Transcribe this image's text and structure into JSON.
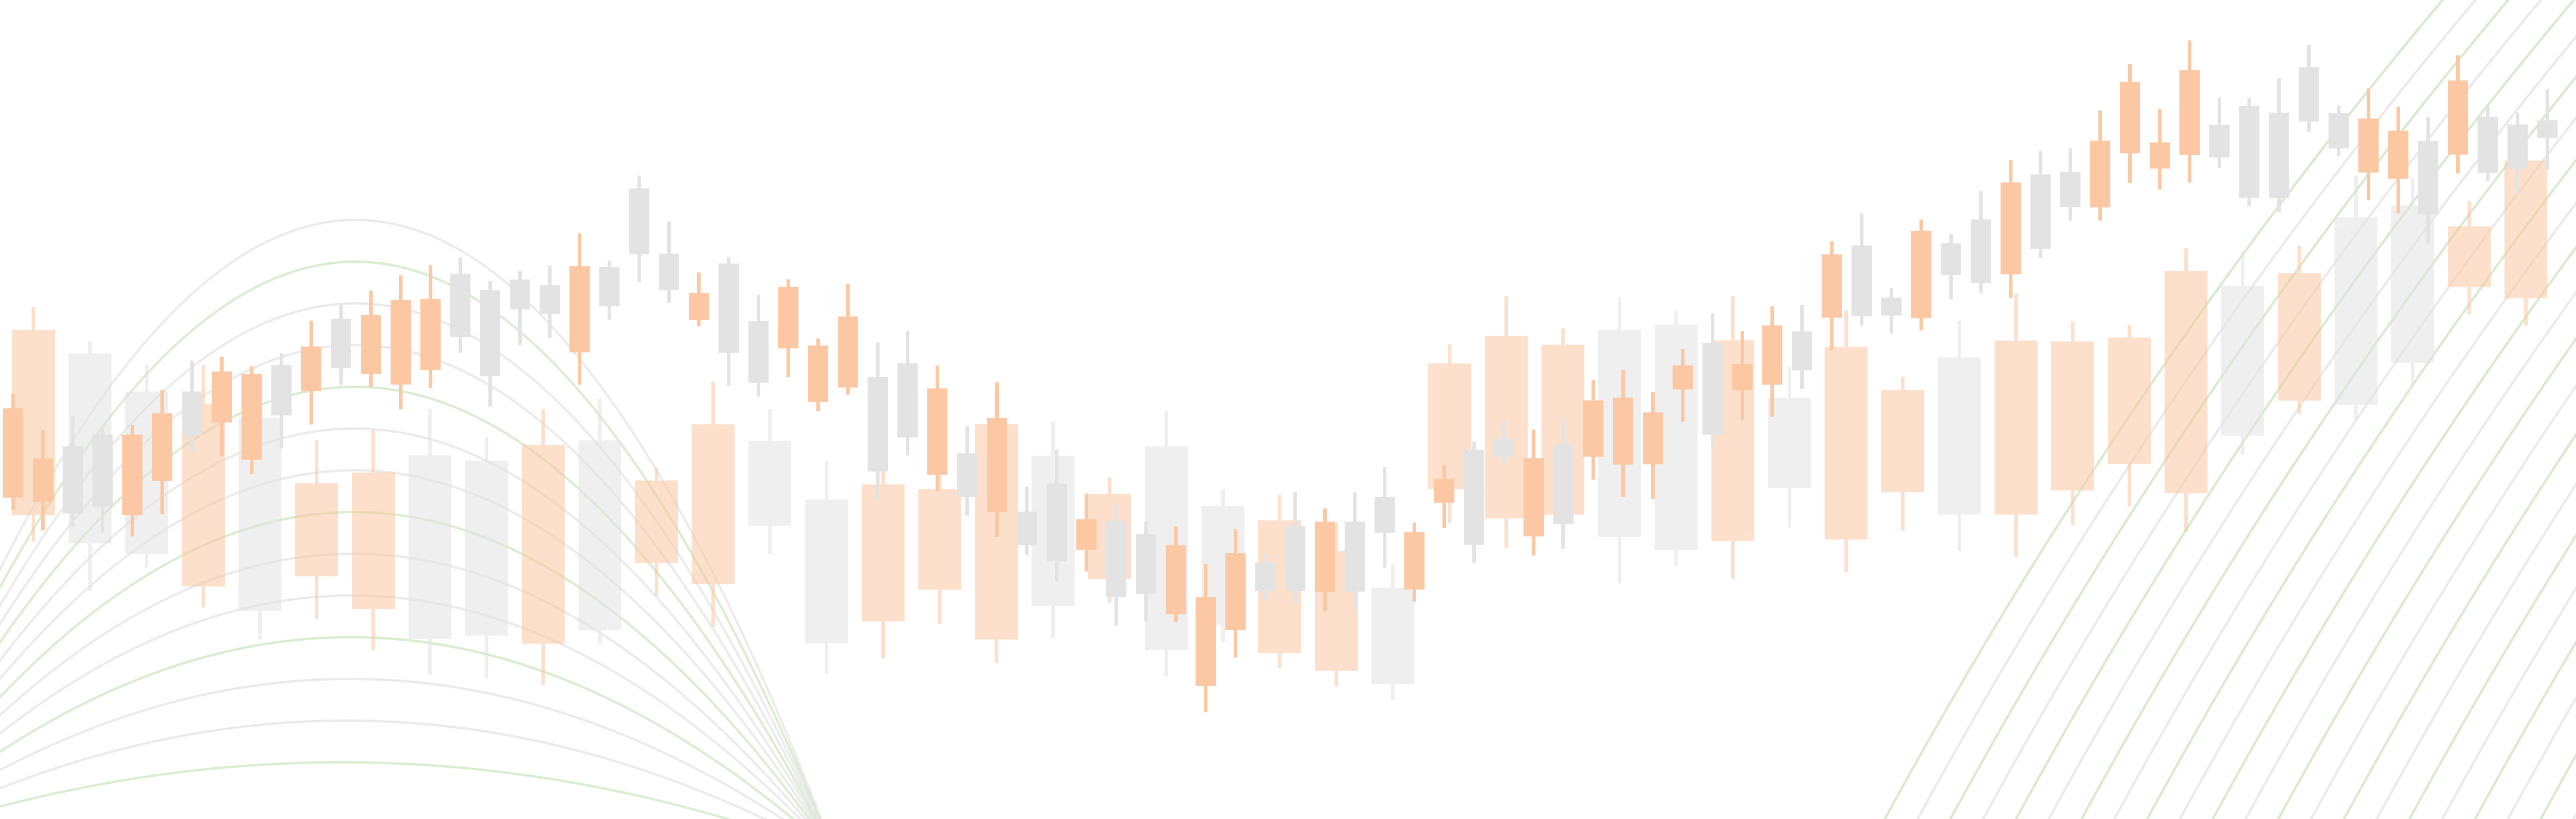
{
  "colors": {
    "background": "#ffffff",
    "bullish_candle": "#fbc8a3",
    "bearish_candle": "#e3e3e3",
    "curve_lines": "#cfe8c4",
    "faint_curve_lines": "#e6e6e6"
  },
  "chart_data": {
    "type": "candlestick",
    "title": "",
    "xlabel": "",
    "ylabel": "",
    "grid": false,
    "legend": "none"
  }
}
